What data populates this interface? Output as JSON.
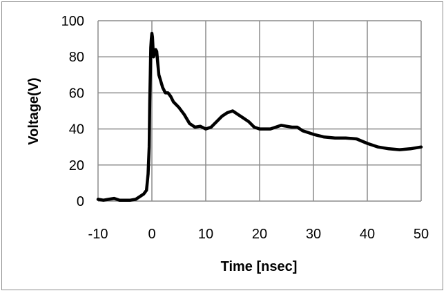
{
  "chart_data": {
    "type": "line",
    "title": "",
    "xlabel": "Time [nsec]",
    "ylabel": "Voltage(V)",
    "xlim": [
      -10,
      50
    ],
    "ylim": [
      0,
      100
    ],
    "x_ticks": [
      "-10",
      "0",
      "10",
      "20",
      "30",
      "40",
      "50"
    ],
    "y_ticks": [
      "0",
      "20",
      "40",
      "60",
      "80",
      "100"
    ],
    "grid": true,
    "legend": "none",
    "line_color": "#000000",
    "grid_color": "#8c8c8c",
    "series": [
      {
        "x": [
          -10,
          -9,
          -8,
          -7,
          -6,
          -5,
          -4,
          -3,
          -2,
          -1.5,
          -1,
          -0.7,
          -0.5,
          -0.4,
          -0.3,
          -0.2,
          -0.1,
          0,
          0.1,
          0.2,
          0.3,
          0.5,
          0.7,
          0.9,
          1.1,
          1.3,
          1.5,
          2,
          2.5,
          3,
          3.5,
          4,
          5,
          6,
          7,
          8,
          9,
          10,
          11,
          12,
          13,
          14,
          15,
          16,
          17,
          18,
          19,
          20,
          21,
          22,
          23,
          24,
          25,
          26,
          27,
          28,
          29,
          30,
          32,
          34,
          36,
          38,
          40,
          42,
          44,
          46,
          48,
          50
        ],
        "values": [
          1,
          0.5,
          1,
          1.5,
          0.5,
          0.5,
          0.5,
          1,
          3,
          4,
          6,
          15,
          30,
          55,
          70,
          85,
          90,
          93,
          91,
          85,
          80,
          82,
          84,
          83,
          76,
          70,
          68,
          63,
          60,
          60,
          58,
          55,
          52,
          48,
          43,
          41,
          41.5,
          40,
          41,
          44,
          47,
          49,
          50,
          48,
          46,
          44,
          41,
          40,
          40,
          40,
          41,
          42,
          41.5,
          41,
          41,
          39,
          38,
          37,
          35.5,
          35,
          35,
          34.5,
          32,
          30,
          29,
          28.5,
          29,
          30
        ]
      }
    ]
  }
}
